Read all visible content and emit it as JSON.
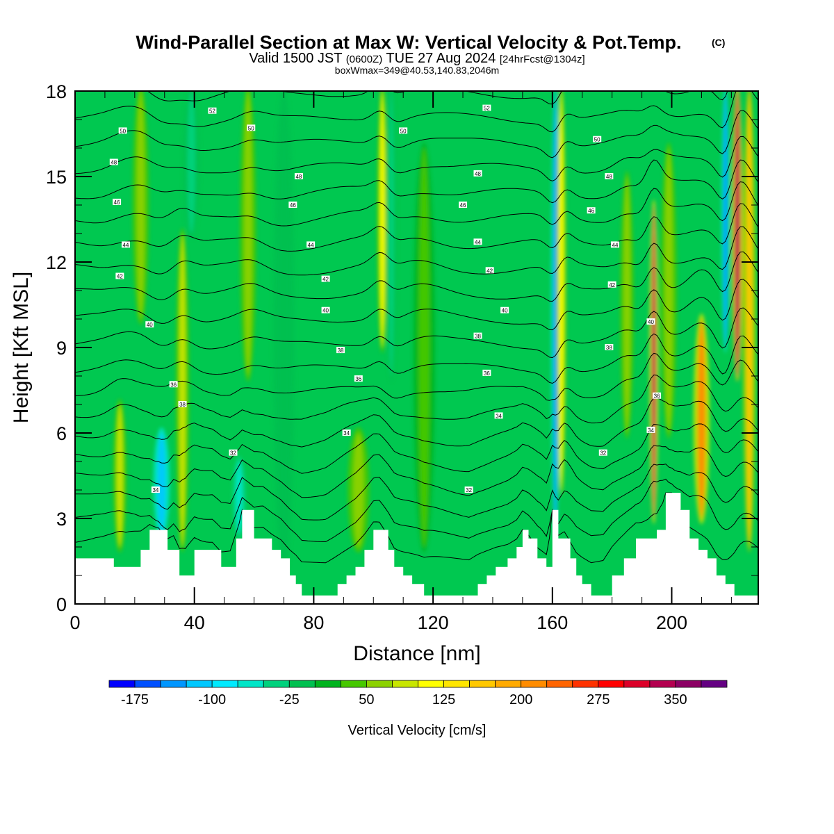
{
  "title": {
    "main": "Wind-Parallel Section at Max W: Vertical Velocity & Pot.Temp.",
    "copyright": "(C)",
    "valid_prefix": "Valid 1500 JST",
    "valid_utc": "(0600Z)",
    "valid_date": "TUE 27 Aug 2024",
    "forecast": "[24hrFcst@1304z]",
    "box_info": "boxWmax=349@40.53,140.83,2046m"
  },
  "colorbar": {
    "title": "Vertical Velocity [cm/s]",
    "labels": [
      "-175",
      "-100",
      "-25",
      "50",
      "125",
      "200",
      "275",
      "350"
    ],
    "colors": [
      "#0000ff",
      "#0050ff",
      "#0096ff",
      "#00c8ff",
      "#00eaff",
      "#00e6c8",
      "#00d27d",
      "#00c050",
      "#00b41e",
      "#46c800",
      "#8cd200",
      "#c8e600",
      "#ffff00",
      "#ffe600",
      "#ffc800",
      "#ffaa00",
      "#ff8c00",
      "#ff6400",
      "#ff3200",
      "#ff0000",
      "#dc0028",
      "#b40050",
      "#8c0064",
      "#640082"
    ]
  },
  "chart_data": {
    "type": "heatmap",
    "title": "Wind-Parallel Section at Max W: Vertical Velocity & Pot.Temp.",
    "xlabel": "Distance [nm]",
    "ylabel": "Height [Kft MSL]",
    "xlim": [
      0,
      229
    ],
    "ylim": [
      0,
      18
    ],
    "x_ticks": [
      "0",
      "40",
      "80",
      "120",
      "160",
      "200"
    ],
    "y_ticks": [
      "0",
      "3",
      "6",
      "9",
      "12",
      "15",
      "18"
    ],
    "background_value": 10,
    "terrain": {
      "x": [
        0,
        7,
        13,
        17,
        22,
        25,
        28,
        31,
        33,
        35,
        37,
        40,
        46,
        49,
        52,
        54,
        56,
        60,
        63,
        66,
        69,
        72,
        74,
        76,
        78,
        80,
        84,
        88,
        91,
        94,
        97,
        100,
        102,
        105,
        107,
        110,
        113,
        117,
        120,
        123,
        127,
        132,
        135,
        138,
        141,
        145,
        148,
        150,
        152,
        155,
        158,
        160,
        162,
        164,
        166,
        168,
        170,
        173,
        177,
        180,
        184,
        188,
        192,
        195,
        198,
        200,
        203,
        206,
        209,
        212,
        215,
        218,
        221,
        224,
        229
      ],
      "y": [
        1.6,
        1.6,
        1.3,
        1.3,
        1.9,
        2.6,
        2.6,
        1.9,
        1.9,
        1.0,
        1.0,
        1.9,
        1.9,
        1.3,
        1.3,
        2.3,
        3.3,
        2.3,
        2.3,
        1.9,
        1.6,
        1.0,
        0.7,
        0.3,
        0.3,
        0.3,
        0.3,
        0.7,
        1.0,
        1.3,
        1.9,
        2.6,
        2.6,
        1.9,
        1.3,
        1.0,
        0.7,
        0.3,
        0.3,
        0.3,
        0.3,
        0.3,
        0.7,
        1.0,
        1.3,
        1.6,
        2.0,
        2.6,
        2.3,
        1.6,
        1.3,
        3.3,
        2.3,
        2.3,
        1.6,
        1.0,
        0.7,
        0.3,
        0.3,
        1.0,
        1.6,
        2.3,
        2.3,
        2.6,
        3.9,
        3.9,
        3.3,
        2.3,
        1.9,
        1.6,
        1.0,
        0.7,
        0.3,
        0.3,
        0.3
      ]
    },
    "updrafts": [
      {
        "x": 15,
        "z0": 2,
        "z1": 7,
        "width": 2.5,
        "value": 80
      },
      {
        "x": 22,
        "z0": 10,
        "z1": 18,
        "width": 3,
        "value": 60
      },
      {
        "x": 29,
        "z0": 2.5,
        "z1": 6,
        "width": 3,
        "value": -120
      },
      {
        "x": 36,
        "z0": 2,
        "z1": 13,
        "width": 2.5,
        "value": 90
      },
      {
        "x": 39,
        "z0": 13,
        "z1": 18,
        "width": 3,
        "value": -40
      },
      {
        "x": 55,
        "z0": 2.5,
        "z1": 5,
        "width": 2.5,
        "value": -60
      },
      {
        "x": 58,
        "z0": 8,
        "z1": 18,
        "width": 3,
        "value": 60
      },
      {
        "x": 70,
        "z0": 1,
        "z1": 18,
        "width": 4,
        "value": -20
      },
      {
        "x": 95,
        "z0": 2,
        "z1": 6,
        "width": 4,
        "value": 60
      },
      {
        "x": 103,
        "z0": 9,
        "z1": 18,
        "width": 2,
        "value": 110
      },
      {
        "x": 106,
        "z0": 8,
        "z1": 18,
        "width": 2,
        "value": -50
      },
      {
        "x": 117,
        "z0": 2,
        "z1": 16,
        "width": 4,
        "value": 40
      },
      {
        "x": 161,
        "z0": 2.5,
        "z1": 18,
        "width": 1.6,
        "value": -150
      },
      {
        "x": 163,
        "z0": 4,
        "z1": 18,
        "width": 1.8,
        "value": 120
      },
      {
        "x": 185,
        "z0": 6,
        "z1": 15,
        "width": 2.5,
        "value": 70
      },
      {
        "x": 194,
        "z0": 3,
        "z1": 14,
        "width": 1.6,
        "value": 330
      },
      {
        "x": 199,
        "z0": 6,
        "z1": 16,
        "width": 3,
        "value": 60
      },
      {
        "x": 210,
        "z0": 3,
        "z1": 10,
        "width": 3,
        "value": 200
      },
      {
        "x": 218,
        "z0": 9,
        "z1": 18,
        "width": 1.5,
        "value": -140
      },
      {
        "x": 222,
        "z0": 8,
        "z1": 18,
        "width": 2,
        "value": 340
      },
      {
        "x": 226,
        "z0": 2,
        "z1": 18,
        "width": 2.5,
        "value": 150
      }
    ],
    "theta_contours": {
      "base_k": 32,
      "step_k": 2,
      "count": 20,
      "labels": [
        {
          "x": 27,
          "z": 4.0,
          "text": "34"
        },
        {
          "x": 33,
          "z": 7.7,
          "text": "36"
        },
        {
          "x": 36,
          "z": 7.0,
          "text": "38"
        },
        {
          "x": 25,
          "z": 9.8,
          "text": "40"
        },
        {
          "x": 15,
          "z": 11.5,
          "text": "42"
        },
        {
          "x": 17,
          "z": 12.6,
          "text": "44"
        },
        {
          "x": 14,
          "z": 14.1,
          "text": "46"
        },
        {
          "x": 13,
          "z": 15.5,
          "text": "48"
        },
        {
          "x": 16,
          "z": 16.6,
          "text": "50"
        },
        {
          "x": 46,
          "z": 17.3,
          "text": "52"
        },
        {
          "x": 53,
          "z": 5.3,
          "text": "32"
        },
        {
          "x": 91,
          "z": 6.0,
          "text": "34"
        },
        {
          "x": 95,
          "z": 7.9,
          "text": "36"
        },
        {
          "x": 89,
          "z": 8.9,
          "text": "38"
        },
        {
          "x": 84,
          "z": 10.3,
          "text": "40"
        },
        {
          "x": 84,
          "z": 11.4,
          "text": "42"
        },
        {
          "x": 79,
          "z": 12.6,
          "text": "44"
        },
        {
          "x": 73,
          "z": 14.0,
          "text": "46"
        },
        {
          "x": 75,
          "z": 15.0,
          "text": "48"
        },
        {
          "x": 59,
          "z": 16.7,
          "text": "50"
        },
        {
          "x": 132,
          "z": 4.0,
          "text": "32"
        },
        {
          "x": 142,
          "z": 6.6,
          "text": "34"
        },
        {
          "x": 138,
          "z": 8.1,
          "text": "36"
        },
        {
          "x": 135,
          "z": 9.4,
          "text": "38"
        },
        {
          "x": 144,
          "z": 10.3,
          "text": "40"
        },
        {
          "x": 139,
          "z": 11.7,
          "text": "42"
        },
        {
          "x": 135,
          "z": 12.7,
          "text": "44"
        },
        {
          "x": 130,
          "z": 14.0,
          "text": "46"
        },
        {
          "x": 135,
          "z": 15.1,
          "text": "48"
        },
        {
          "x": 110,
          "z": 16.6,
          "text": "50"
        },
        {
          "x": 138,
          "z": 17.4,
          "text": "52"
        },
        {
          "x": 177,
          "z": 5.3,
          "text": "32"
        },
        {
          "x": 193,
          "z": 6.1,
          "text": "34"
        },
        {
          "x": 195,
          "z": 7.3,
          "text": "36"
        },
        {
          "x": 179,
          "z": 9.0,
          "text": "38"
        },
        {
          "x": 193,
          "z": 9.9,
          "text": "40"
        },
        {
          "x": 180,
          "z": 11.2,
          "text": "42"
        },
        {
          "x": 181,
          "z": 12.6,
          "text": "44"
        },
        {
          "x": 173,
          "z": 13.8,
          "text": "46"
        },
        {
          "x": 179,
          "z": 15.0,
          "text": "48"
        },
        {
          "x": 175,
          "z": 16.3,
          "text": "50"
        }
      ]
    }
  }
}
